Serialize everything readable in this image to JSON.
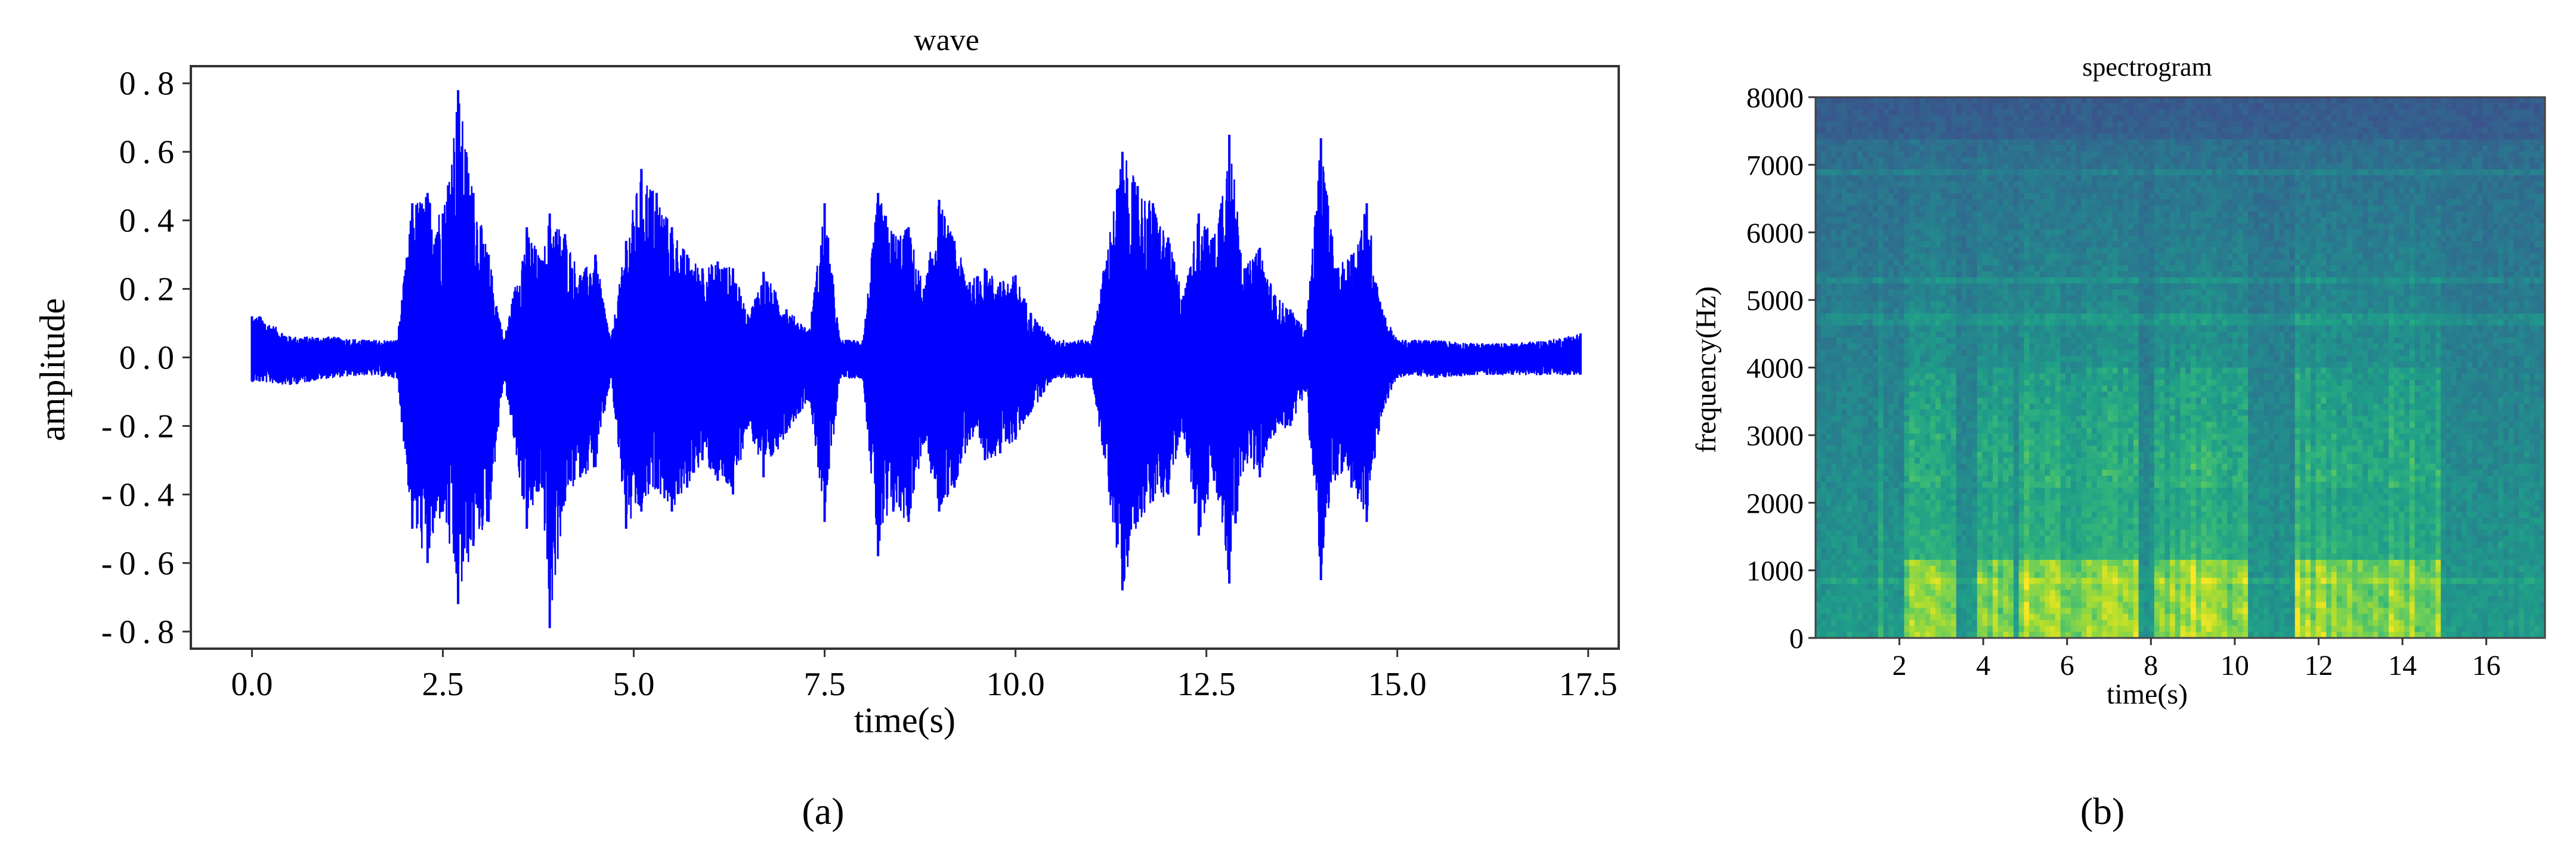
{
  "figure": {
    "panel_a_label": "(a)",
    "panel_b_label": "(b)"
  },
  "chart_data": [
    {
      "type": "line",
      "title": "wave",
      "xlabel": "time(s)",
      "ylabel": "amplitude",
      "xlim": [
        -0.8,
        17.9
      ],
      "ylim": [
        -0.85,
        0.85
      ],
      "xticks": [
        0.0,
        2.5,
        5.0,
        7.5,
        10.0,
        12.5,
        15.0,
        17.5
      ],
      "xtick_labels": [
        "0.0",
        "2.5",
        "5.0",
        "7.5",
        "10.0",
        "12.5",
        "15.0",
        "17.5"
      ],
      "yticks": [
        0.8,
        0.6,
        0.4,
        0.2,
        0.0,
        -0.2,
        -0.4,
        -0.6,
        -0.8
      ],
      "ytick_labels": [
        "0.8",
        "0.6",
        "0.4",
        "0.2",
        "0.0",
        "-0.2",
        "-0.4",
        "-0.6",
        "-0.8"
      ],
      "grid": false,
      "color": "#0000ff",
      "envelope": {
        "t": [
          0.0,
          0.1,
          0.5,
          1.0,
          1.5,
          1.9,
          2.1,
          2.3,
          2.5,
          2.7,
          2.9,
          3.1,
          3.3,
          3.6,
          3.8,
          3.9,
          4.1,
          4.3,
          4.5,
          4.7,
          4.9,
          5.1,
          5.3,
          5.5,
          5.7,
          5.9,
          6.1,
          6.3,
          6.5,
          6.7,
          7.0,
          7.3,
          7.5,
          7.7,
          8.0,
          8.2,
          8.4,
          8.6,
          8.8,
          9.0,
          9.2,
          9.4,
          9.6,
          9.8,
          10.0,
          10.2,
          10.5,
          11.0,
          11.4,
          11.6,
          11.8,
          12.0,
          12.2,
          12.4,
          12.6,
          12.8,
          13.0,
          13.2,
          13.4,
          13.6,
          13.8,
          14.0,
          14.2,
          14.4,
          14.6,
          14.8,
          15.0,
          15.2,
          15.5,
          16.0,
          16.5,
          17.0,
          17.4
        ],
        "upper": [
          0.12,
          0.12,
          0.06,
          0.06,
          0.05,
          0.05,
          0.45,
          0.48,
          0.42,
          0.78,
          0.48,
          0.3,
          0.05,
          0.38,
          0.28,
          0.42,
          0.36,
          0.24,
          0.3,
          0.05,
          0.34,
          0.55,
          0.48,
          0.38,
          0.3,
          0.26,
          0.28,
          0.26,
          0.12,
          0.25,
          0.14,
          0.08,
          0.45,
          0.05,
          0.05,
          0.48,
          0.36,
          0.38,
          0.2,
          0.46,
          0.34,
          0.22,
          0.26,
          0.22,
          0.24,
          0.13,
          0.05,
          0.05,
          0.6,
          0.5,
          0.45,
          0.35,
          0.18,
          0.42,
          0.35,
          0.65,
          0.26,
          0.32,
          0.18,
          0.14,
          0.08,
          0.64,
          0.26,
          0.3,
          0.45,
          0.14,
          0.05,
          0.05,
          0.05,
          0.04,
          0.04,
          0.05,
          0.07
        ],
        "lower": [
          -0.07,
          -0.07,
          -0.08,
          -0.06,
          -0.05,
          -0.06,
          -0.5,
          -0.6,
          -0.45,
          -0.72,
          -0.55,
          -0.48,
          -0.06,
          -0.5,
          -0.38,
          -0.79,
          -0.42,
          -0.35,
          -0.32,
          -0.06,
          -0.5,
          -0.45,
          -0.38,
          -0.45,
          -0.38,
          -0.3,
          -0.36,
          -0.4,
          -0.2,
          -0.35,
          -0.22,
          -0.12,
          -0.48,
          -0.06,
          -0.06,
          -0.58,
          -0.45,
          -0.48,
          -0.25,
          -0.45,
          -0.38,
          -0.24,
          -0.3,
          -0.28,
          -0.24,
          -0.16,
          -0.06,
          -0.06,
          -0.68,
          -0.48,
          -0.42,
          -0.4,
          -0.22,
          -0.52,
          -0.36,
          -0.66,
          -0.3,
          -0.35,
          -0.22,
          -0.2,
          -0.1,
          -0.65,
          -0.34,
          -0.38,
          -0.48,
          -0.16,
          -0.06,
          -0.05,
          -0.06,
          -0.05,
          -0.05,
          -0.05,
          -0.05
        ]
      }
    },
    {
      "type": "heatmap",
      "title": "spectrogram",
      "xlabel": "time(s)",
      "ylabel": "frequency(Hz)",
      "xlim": [
        0,
        17.4
      ],
      "ylim": [
        0,
        8000
      ],
      "xticks": [
        2,
        4,
        6,
        8,
        10,
        12,
        14,
        16
      ],
      "xtick_labels": [
        "2",
        "4",
        "6",
        "8",
        "10",
        "12",
        "14",
        "16"
      ],
      "yticks": [
        0,
        1000,
        2000,
        3000,
        4000,
        5000,
        6000,
        7000,
        8000
      ],
      "ytick_labels": [
        "0",
        "1000",
        "2000",
        "3000",
        "4000",
        "5000",
        "6000",
        "7000",
        "8000"
      ],
      "colormap": "viridis",
      "colormap_stops": [
        "#3b528b",
        "#31688e",
        "#26828e",
        "#1f9e89",
        "#35b779",
        "#6ece58",
        "#b5de2b",
        "#fde725"
      ],
      "speech_segments": [
        [
          2.1,
          3.3
        ],
        [
          3.8,
          4.7
        ],
        [
          4.9,
          7.7
        ],
        [
          8.1,
          10.3
        ],
        [
          11.4,
          14.9
        ]
      ],
      "background_level": 0.32
    }
  ]
}
